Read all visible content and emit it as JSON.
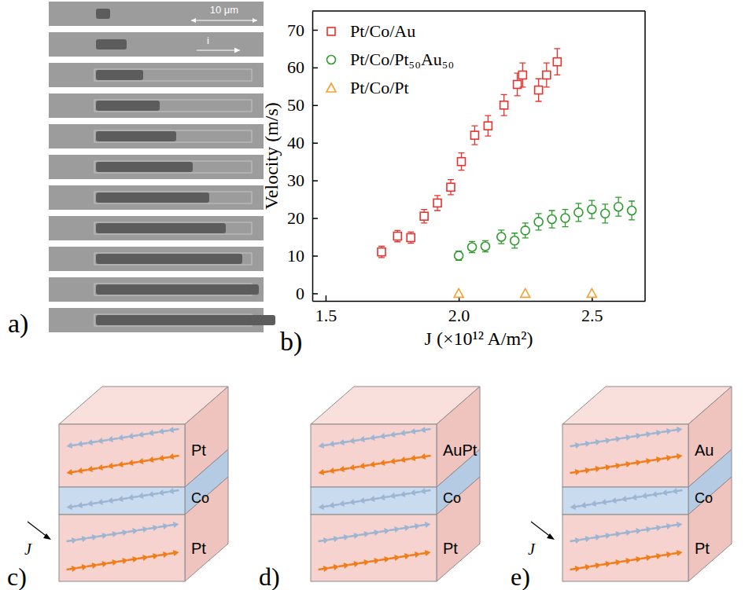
{
  "chart_data": {
    "type": "scatter",
    "x_label": "J (×10¹² A/m²)",
    "y_label": "Velocity (m/s)",
    "xlim": [
      1.45,
      2.7
    ],
    "ylim": [
      -2,
      75
    ],
    "xticks": [
      1.5,
      {
        "value": 2,
        "label": "2.0"
      },
      2.5
    ],
    "yticks": [
      0,
      10,
      20,
      30,
      40,
      50,
      60,
      70
    ],
    "legend": "upper left",
    "series": [
      {
        "name": "Pt/Co/Au",
        "color": "#e8322d",
        "marker": "square",
        "x": [
          1.71,
          1.77,
          1.82,
          1.87,
          1.92,
          1.97,
          2.01,
          2.06,
          2.11,
          2.17,
          2.22,
          2.24,
          2.3,
          2.33,
          2.37
        ],
        "values": [
          11,
          15.2,
          14.8,
          20.5,
          24,
          28.2,
          35,
          42,
          44.5,
          50,
          55.5,
          58,
          54,
          58,
          61.5
        ],
        "errors": [
          1.5,
          1.5,
          1.5,
          1.8,
          2,
          2,
          2.3,
          2.5,
          2.7,
          2.8,
          3,
          3.2,
          3,
          3.2,
          3.5
        ]
      },
      {
        "name": "Pt/Co/Pt₅₀Au₅₀",
        "color": "#2e9b2e",
        "marker": "circle",
        "x": [
          2.0,
          2.05,
          2.1,
          2.16,
          2.21,
          2.25,
          2.3,
          2.35,
          2.4,
          2.45,
          2.5,
          2.55,
          2.6,
          2.65
        ],
        "values": [
          10,
          12.3,
          12.5,
          15,
          14,
          16.7,
          19,
          19.7,
          20,
          21.5,
          22.3,
          21.2,
          23,
          22
        ],
        "errors": [
          1.2,
          1.5,
          1.5,
          1.8,
          2,
          2,
          2.2,
          2.3,
          2.3,
          2.4,
          2.4,
          2.5,
          2.5,
          2.5
        ]
      },
      {
        "name": "Pt/Co/Pt",
        "color": "#f5a030",
        "marker": "triangle",
        "x": [
          2.0,
          2.25,
          2.5
        ],
        "values": [
          0,
          0,
          0
        ]
      }
    ]
  },
  "panel_labels": [
    "a)",
    "b)",
    "c)",
    "d)",
    "e)"
  ],
  "image_panel": {
    "scale_bar": "10 μm",
    "current": "i"
  },
  "diagrams": [
    {
      "layers": [
        "Pt",
        "Co",
        "Pt"
      ],
      "current": "J"
    },
    {
      "layers": [
        "AuPt",
        "Co",
        "Pt"
      ]
    },
    {
      "layers": [
        "Au",
        "Co",
        "Pt"
      ],
      "current": "J"
    }
  ]
}
